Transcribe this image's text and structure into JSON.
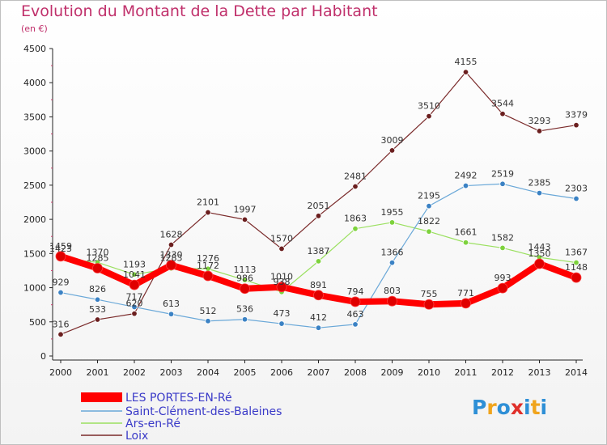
{
  "title": "Evolution du Montant de la Dette par Habitant",
  "subtitle": "(en €)",
  "logo": {
    "letters": [
      "P",
      "r",
      "o",
      "x",
      "i",
      "t",
      "i"
    ],
    "colors": [
      "#2e8fd6",
      "#f0a41c",
      "#2e8fd6",
      "#e0302a",
      "#2e8fd6",
      "#f0a41c",
      "#2e8fd6"
    ]
  },
  "chart_data": {
    "type": "line",
    "categories": [
      "2000",
      "2001",
      "2002",
      "2003",
      "2004",
      "2005",
      "2006",
      "2007",
      "2008",
      "2009",
      "2010",
      "2011",
      "2012",
      "2013",
      "2014"
    ],
    "ylim": [
      0,
      4500
    ],
    "yticks": [
      0,
      500,
      1000,
      1500,
      2000,
      2500,
      3000,
      3500,
      4000,
      4500
    ],
    "grid": false,
    "legend_position": "bottom-left",
    "series": [
      {
        "name": "LES PORTES-EN-Ré",
        "color": "#ff0000",
        "marker": "#e00000",
        "width": 8,
        "values": [
          1459,
          1285,
          1041,
          1330,
          1172,
          986,
          1010,
          891,
          794,
          803,
          755,
          771,
          993,
          1350,
          1148
        ]
      },
      {
        "name": "Saint-Clément-des-Baleines",
        "color": "#6aa8d8",
        "marker": "#3b82c4",
        "width": 1.2,
        "values": [
          929,
          826,
          717,
          613,
          512,
          536,
          473,
          412,
          463,
          1366,
          2195,
          2492,
          2519,
          2385,
          2303
        ]
      },
      {
        "name": "Ars-en-Ré",
        "color": "#9be060",
        "marker": "#7dd23c",
        "width": 1.2,
        "values": [
          1423,
          1370,
          1193,
          1283,
          1276,
          1113,
          938,
          1387,
          1863,
          1955,
          1822,
          1661,
          1582,
          1443,
          1367
        ]
      },
      {
        "name": "Loix",
        "color": "#7a2a2a",
        "marker": "#6b1f1f",
        "width": 1.2,
        "values": [
          316,
          533,
          620,
          1628,
          2101,
          1997,
          1570,
          2051,
          2481,
          3009,
          3510,
          4155,
          3544,
          3293,
          3379
        ]
      }
    ]
  }
}
